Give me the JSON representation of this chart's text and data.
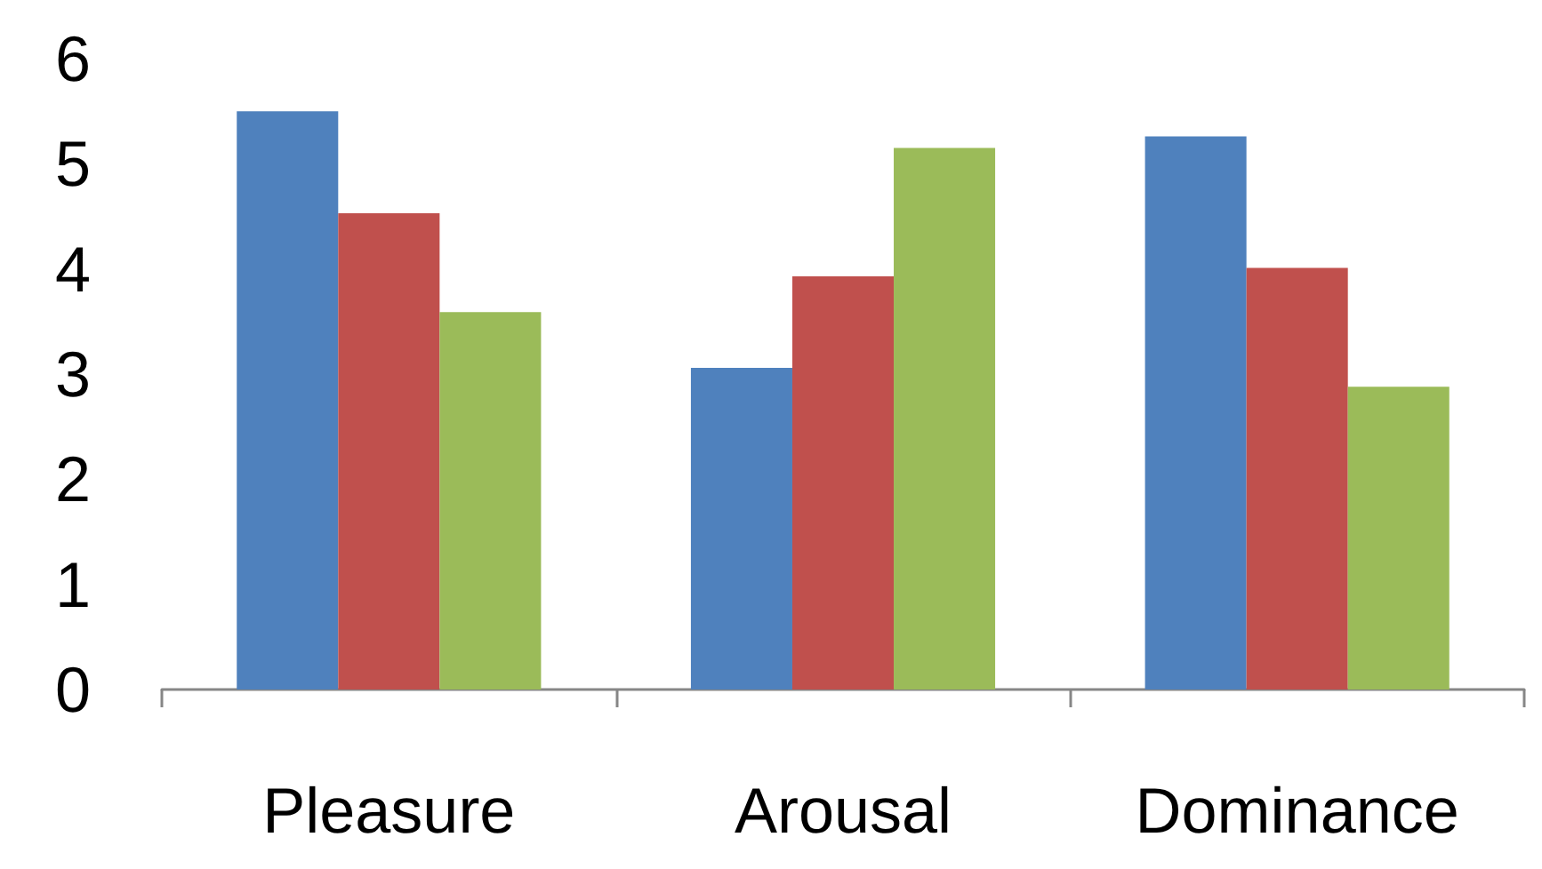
{
  "chart_data": {
    "type": "bar",
    "categories": [
      "Pleasure",
      "Arousal",
      "Dominance"
    ],
    "series": [
      {
        "color": "#4f81bd",
        "values": [
          5.5,
          3.06,
          5.26
        ]
      },
      {
        "color": "#c0504d",
        "values": [
          4.53,
          3.93,
          4.01
        ]
      },
      {
        "color": "#9bbb59",
        "values": [
          3.59,
          5.15,
          2.88
        ]
      }
    ],
    "ylim": [
      0,
      6
    ],
    "yticks": [
      0,
      1,
      2,
      3,
      4,
      5,
      6
    ],
    "grid": false
  }
}
